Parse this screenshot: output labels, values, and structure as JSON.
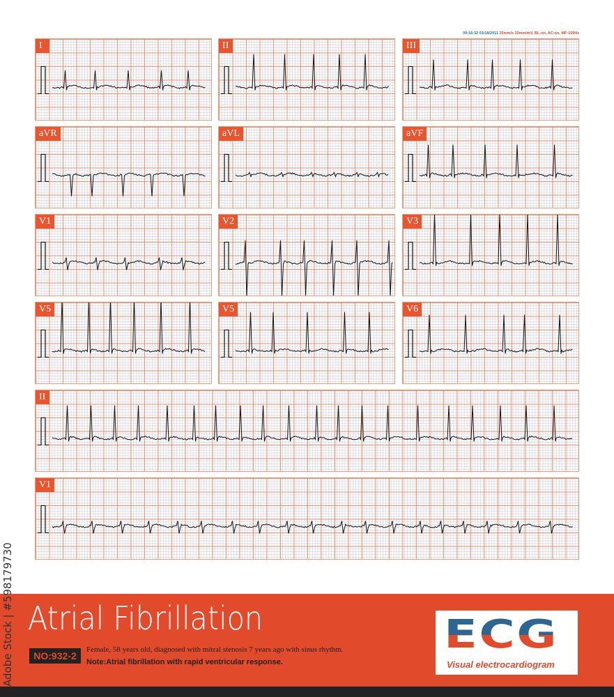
{
  "header": {
    "timestamp": "09:16:32 01/18/2011",
    "settings": "25mm/s 10mm/mV, BL:on, AC:on, MF:150Hz"
  },
  "leads": [
    {
      "label": "I",
      "polarity": "positive",
      "qrs_mm": 6
    },
    {
      "label": "II",
      "polarity": "positive",
      "qrs_mm": 12
    },
    {
      "label": "III",
      "polarity": "positive",
      "qrs_mm": 10
    },
    {
      "label": "aVR",
      "polarity": "negative",
      "qrs_mm": 8
    },
    {
      "label": "aVL",
      "polarity": "flat",
      "qrs_mm": 1
    },
    {
      "label": "aVF",
      "polarity": "positive",
      "qrs_mm": 11
    },
    {
      "label": "V1",
      "polarity": "biphasic",
      "qrs_mm": 4
    },
    {
      "label": "V2",
      "polarity": "biphasic",
      "qrs_mm": 18
    },
    {
      "label": "V3",
      "polarity": "positive",
      "qrs_mm": 18
    },
    {
      "label": "V5",
      "polarity": "positive",
      "qrs_mm": 19
    },
    {
      "label": "V5",
      "polarity": "positive",
      "qrs_mm": 14
    },
    {
      "label": "V6",
      "polarity": "positive",
      "qrs_mm": 13
    }
  ],
  "rhythm_strips": [
    {
      "label": "II",
      "polarity": "positive",
      "qrs_mm": 12
    },
    {
      "label": "V1",
      "polarity": "biphasic",
      "qrs_mm": 4
    }
  ],
  "banner": {
    "title": "Atrial Fibrillation",
    "case_number": "NO:932-2",
    "description": "Female, 58 years old, diagnosed with mitral stenosis 7 years ago with sinus rhythm.",
    "note": "Note:Atrial fibrillation with rapid ventricular response."
  },
  "logo": {
    "text": "ECG",
    "subtitle": "Visual electrocardiogram"
  },
  "watermark": "Adobe Stock | #598179730",
  "colors": {
    "accent": "#e24a2c",
    "logo_blue": "#2d6593",
    "grid_major": "#f0784f",
    "trace": "#111111"
  }
}
